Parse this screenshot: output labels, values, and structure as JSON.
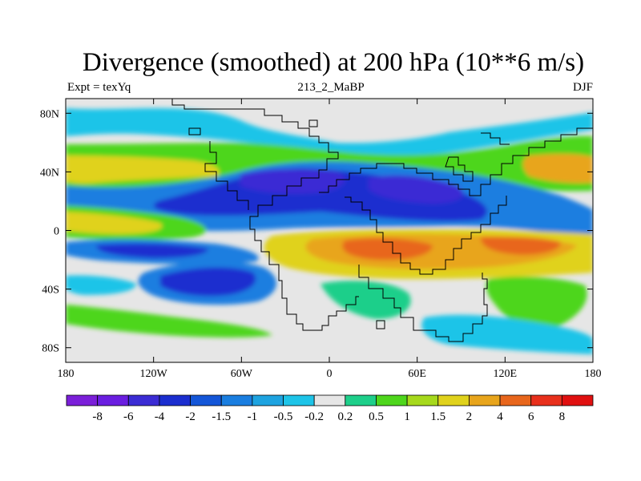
{
  "header": {
    "title": "Divergence (smoothed) at 200 hPa (10**6 m/s)",
    "left_label": "Expt = texYq",
    "center_label": "213_2_MaBP",
    "right_label": "DJF"
  },
  "chart_data": {
    "type": "heatmap",
    "title": "Divergence (smoothed) at 200 hPa (10**6 m/s)",
    "xlabel": "",
    "ylabel": "",
    "xlim": [
      -180,
      180
    ],
    "ylim": [
      -90,
      90
    ],
    "x_ticks": [
      {
        "value": -180,
        "label": "180"
      },
      {
        "value": -120,
        "label": "120W"
      },
      {
        "value": -60,
        "label": "60W"
      },
      {
        "value": 0,
        "label": "0"
      },
      {
        "value": 60,
        "label": "60E"
      },
      {
        "value": 120,
        "label": "120E"
      },
      {
        "value": 180,
        "label": "180"
      }
    ],
    "y_ticks": [
      {
        "value": 80,
        "label": "80N"
      },
      {
        "value": 40,
        "label": "40N"
      },
      {
        "value": 0,
        "label": "0"
      },
      {
        "value": -40,
        "label": "40S"
      },
      {
        "value": -80,
        "label": "80S"
      }
    ],
    "colorbar": {
      "boundaries": [
        "-8",
        "-6",
        "-4",
        "-2",
        "-1.5",
        "-1",
        "-0.5",
        "-0.2",
        "0.2",
        "0.5",
        "1",
        "1.5",
        "2",
        "4",
        "6",
        "8"
      ],
      "colors": [
        "#7b1fd9",
        "#6a1ee0",
        "#3b2cd4",
        "#1b2ecf",
        "#1456d8",
        "#1a7ee0",
        "#1ea3e0",
        "#1ec4e8",
        "#e6e6e6",
        "#1ecf8a",
        "#4ed61c",
        "#a6d91c",
        "#e0d21c",
        "#e8a51c",
        "#e8661c",
        "#e8301c",
        "#e01010"
      ]
    },
    "features": [
      {
        "name": "negative-band-north-atlantic-eurasia",
        "lon": [
          -120,
          150
        ],
        "lat": [
          10,
          55
        ],
        "min": -4
      },
      {
        "name": "positive-band-northern-midlatitudes",
        "lon": [
          -180,
          180
        ],
        "lat": [
          30,
          60
        ],
        "max": 4
      },
      {
        "name": "positive-band-tropics",
        "lon": [
          -20,
          180
        ],
        "lat": [
          -40,
          0
        ],
        "max": 6
      },
      {
        "name": "negative-center-south-pacific",
        "lon": [
          -120,
          -80
        ],
        "lat": [
          -60,
          -30
        ],
        "min": -2
      },
      {
        "name": "negative-band-equatorial-pacific",
        "lon": [
          -180,
          -20
        ],
        "lat": [
          -20,
          -5
        ],
        "min": -2
      }
    ]
  }
}
